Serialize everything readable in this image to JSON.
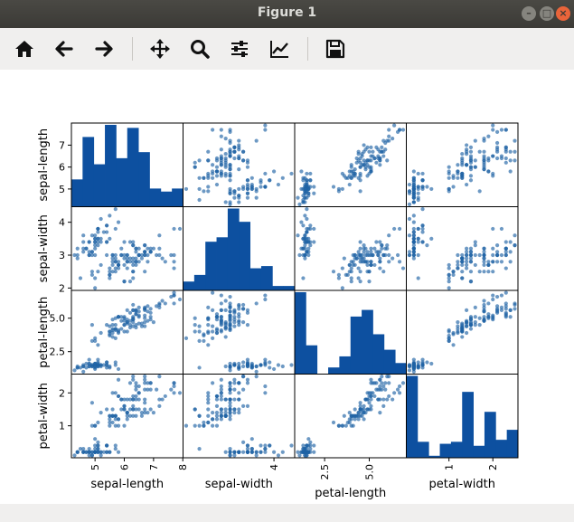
{
  "window": {
    "title": "Figure 1"
  },
  "toolbar": {
    "buttons": [
      {
        "name": "home-button",
        "icon": "home-icon"
      },
      {
        "name": "back-button",
        "icon": "arrow-left-icon"
      },
      {
        "name": "forward-button",
        "icon": "arrow-right-icon"
      },
      {
        "name": "pan-button",
        "icon": "move-icon"
      },
      {
        "name": "zoom-button",
        "icon": "magnifier-icon"
      },
      {
        "name": "configure-subplots-button",
        "icon": "sliders-icon"
      },
      {
        "name": "edit-axes-button",
        "icon": "line-chart-icon"
      },
      {
        "name": "save-button",
        "icon": "floppy-disk-icon"
      }
    ]
  },
  "chart_data": {
    "type": "scatter",
    "variables": [
      "sepal-length",
      "sepal-width",
      "petal-length",
      "petal-width"
    ],
    "ranges": [
      [
        4.3,
        7.9
      ],
      [
        2.0,
        4.4
      ],
      [
        1.0,
        6.9
      ],
      [
        0.1,
        2.5
      ]
    ],
    "y_ticks": [
      [
        5,
        6,
        7
      ],
      [
        2,
        3,
        4
      ],
      [
        2.5,
        5.0
      ],
      [
        1,
        2
      ]
    ],
    "y_tick_labels": [
      [
        "5",
        "6",
        "7"
      ],
      [
        "2",
        "3",
        "4"
      ],
      [
        "2.5",
        "5.0"
      ],
      [
        "1",
        "2"
      ]
    ],
    "x_ticks": [
      [
        5,
        6,
        7,
        8
      ],
      [
        4
      ],
      [
        2.5,
        5.0
      ],
      [
        1,
        2
      ]
    ],
    "x_tick_labels": [
      [
        "5",
        "6",
        "7",
        "8"
      ],
      [
        "4"
      ],
      [
        "2.5",
        "5.0"
      ],
      [
        "1",
        "2"
      ]
    ],
    "hist_counts": [
      [
        9,
        23,
        14,
        27,
        16,
        26,
        18,
        6,
        5,
        6
      ],
      [
        4,
        7,
        22,
        24,
        37,
        31,
        10,
        11,
        2,
        2
      ],
      [
        37,
        13,
        0,
        3,
        8,
        26,
        29,
        18,
        11,
        5
      ],
      [
        41,
        8,
        1,
        7,
        8,
        33,
        6,
        23,
        9,
        14
      ]
    ],
    "points": [
      [
        5.1,
        3.5,
        1.4,
        0.2
      ],
      [
        4.9,
        3.0,
        1.4,
        0.2
      ],
      [
        4.7,
        3.2,
        1.3,
        0.2
      ],
      [
        4.6,
        3.1,
        1.5,
        0.2
      ],
      [
        5.0,
        3.6,
        1.4,
        0.2
      ],
      [
        5.4,
        3.9,
        1.7,
        0.4
      ],
      [
        4.6,
        3.4,
        1.4,
        0.3
      ],
      [
        5.0,
        3.4,
        1.5,
        0.2
      ],
      [
        4.4,
        2.9,
        1.4,
        0.2
      ],
      [
        4.9,
        3.1,
        1.5,
        0.1
      ],
      [
        5.4,
        3.7,
        1.5,
        0.2
      ],
      [
        4.8,
        3.4,
        1.6,
        0.2
      ],
      [
        4.8,
        3.0,
        1.4,
        0.1
      ],
      [
        4.3,
        3.0,
        1.1,
        0.1
      ],
      [
        5.8,
        4.0,
        1.2,
        0.2
      ],
      [
        5.7,
        4.4,
        1.5,
        0.4
      ],
      [
        5.4,
        3.9,
        1.3,
        0.4
      ],
      [
        5.1,
        3.5,
        1.4,
        0.3
      ],
      [
        5.7,
        3.8,
        1.7,
        0.3
      ],
      [
        5.1,
        3.8,
        1.5,
        0.3
      ],
      [
        5.4,
        3.4,
        1.7,
        0.2
      ],
      [
        5.1,
        3.7,
        1.5,
        0.4
      ],
      [
        4.6,
        3.6,
        1.0,
        0.2
      ],
      [
        5.1,
        3.3,
        1.7,
        0.5
      ],
      [
        4.8,
        3.4,
        1.9,
        0.2
      ],
      [
        5.0,
        3.0,
        1.6,
        0.2
      ],
      [
        5.0,
        3.4,
        1.6,
        0.4
      ],
      [
        5.2,
        3.5,
        1.5,
        0.2
      ],
      [
        5.2,
        3.4,
        1.4,
        0.2
      ],
      [
        4.7,
        3.2,
        1.6,
        0.2
      ],
      [
        4.8,
        3.1,
        1.6,
        0.2
      ],
      [
        5.4,
        3.4,
        1.5,
        0.4
      ],
      [
        5.2,
        4.1,
        1.5,
        0.1
      ],
      [
        5.5,
        4.2,
        1.4,
        0.2
      ],
      [
        4.9,
        3.1,
        1.5,
        0.2
      ],
      [
        5.0,
        3.2,
        1.2,
        0.2
      ],
      [
        5.5,
        3.5,
        1.3,
        0.2
      ],
      [
        4.9,
        3.6,
        1.4,
        0.1
      ],
      [
        4.4,
        3.0,
        1.3,
        0.2
      ],
      [
        5.1,
        3.4,
        1.5,
        0.2
      ],
      [
        5.0,
        3.5,
        1.3,
        0.3
      ],
      [
        4.5,
        2.3,
        1.3,
        0.3
      ],
      [
        4.4,
        3.2,
        1.3,
        0.2
      ],
      [
        5.0,
        3.5,
        1.6,
        0.6
      ],
      [
        5.1,
        3.8,
        1.9,
        0.4
      ],
      [
        4.8,
        3.0,
        1.4,
        0.3
      ],
      [
        5.1,
        3.8,
        1.6,
        0.2
      ],
      [
        4.6,
        3.2,
        1.4,
        0.2
      ],
      [
        5.3,
        3.7,
        1.5,
        0.2
      ],
      [
        5.0,
        3.3,
        1.4,
        0.2
      ],
      [
        7.0,
        3.2,
        4.7,
        1.4
      ],
      [
        6.4,
        3.2,
        4.5,
        1.5
      ],
      [
        6.9,
        3.1,
        4.9,
        1.5
      ],
      [
        5.5,
        2.3,
        4.0,
        1.3
      ],
      [
        6.5,
        2.8,
        4.6,
        1.5
      ],
      [
        5.7,
        2.8,
        4.5,
        1.3
      ],
      [
        6.3,
        3.3,
        4.7,
        1.6
      ],
      [
        4.9,
        2.4,
        3.3,
        1.0
      ],
      [
        6.6,
        2.9,
        4.6,
        1.3
      ],
      [
        5.2,
        2.7,
        3.9,
        1.4
      ],
      [
        5.0,
        2.0,
        3.5,
        1.0
      ],
      [
        5.9,
        3.0,
        4.2,
        1.5
      ],
      [
        6.0,
        2.2,
        4.0,
        1.0
      ],
      [
        6.1,
        2.9,
        4.7,
        1.4
      ],
      [
        5.6,
        2.9,
        3.6,
        1.3
      ],
      [
        6.7,
        3.1,
        4.4,
        1.4
      ],
      [
        5.6,
        3.0,
        4.5,
        1.5
      ],
      [
        5.8,
        2.7,
        4.1,
        1.0
      ],
      [
        6.2,
        2.2,
        4.5,
        1.5
      ],
      [
        5.6,
        2.5,
        3.9,
        1.1
      ],
      [
        5.9,
        3.2,
        4.8,
        1.8
      ],
      [
        6.1,
        2.8,
        4.0,
        1.3
      ],
      [
        6.3,
        2.5,
        4.9,
        1.5
      ],
      [
        6.1,
        2.8,
        4.7,
        1.2
      ],
      [
        6.4,
        2.9,
        4.3,
        1.3
      ],
      [
        6.6,
        3.0,
        4.4,
        1.4
      ],
      [
        6.8,
        2.8,
        4.8,
        1.4
      ],
      [
        6.7,
        3.0,
        5.0,
        1.7
      ],
      [
        6.0,
        2.9,
        4.5,
        1.5
      ],
      [
        5.7,
        2.6,
        3.5,
        1.0
      ],
      [
        5.5,
        2.4,
        3.8,
        1.1
      ],
      [
        5.5,
        2.4,
        3.7,
        1.0
      ],
      [
        5.8,
        2.7,
        3.9,
        1.2
      ],
      [
        6.0,
        2.7,
        5.1,
        1.6
      ],
      [
        5.4,
        3.0,
        4.5,
        1.5
      ],
      [
        6.0,
        3.4,
        4.5,
        1.6
      ],
      [
        6.7,
        3.1,
        4.7,
        1.5
      ],
      [
        6.3,
        2.3,
        4.4,
        1.3
      ],
      [
        5.6,
        3.0,
        4.1,
        1.3
      ],
      [
        5.5,
        2.5,
        4.0,
        1.3
      ],
      [
        5.5,
        2.6,
        4.4,
        1.2
      ],
      [
        6.1,
        3.0,
        4.6,
        1.4
      ],
      [
        5.8,
        2.6,
        4.0,
        1.2
      ],
      [
        5.0,
        2.3,
        3.3,
        1.0
      ],
      [
        5.6,
        2.7,
        4.2,
        1.3
      ],
      [
        5.7,
        3.0,
        4.2,
        1.2
      ],
      [
        5.7,
        2.9,
        4.2,
        1.3
      ],
      [
        6.2,
        2.9,
        4.3,
        1.3
      ],
      [
        5.1,
        2.5,
        3.0,
        1.1
      ],
      [
        5.7,
        2.8,
        4.1,
        1.3
      ],
      [
        6.3,
        3.3,
        6.0,
        2.5
      ],
      [
        5.8,
        2.7,
        5.1,
        1.9
      ],
      [
        7.1,
        3.0,
        5.9,
        2.1
      ],
      [
        6.3,
        2.9,
        5.6,
        1.8
      ],
      [
        6.5,
        3.0,
        5.8,
        2.2
      ],
      [
        7.6,
        3.0,
        6.6,
        2.1
      ],
      [
        4.9,
        2.5,
        4.5,
        1.7
      ],
      [
        7.3,
        2.9,
        6.3,
        1.8
      ],
      [
        6.7,
        2.5,
        5.8,
        1.8
      ],
      [
        7.2,
        3.6,
        6.1,
        2.5
      ],
      [
        6.5,
        3.2,
        5.1,
        2.0
      ],
      [
        6.4,
        2.7,
        5.3,
        1.9
      ],
      [
        6.8,
        3.0,
        5.5,
        2.1
      ],
      [
        5.7,
        2.5,
        5.0,
        2.0
      ],
      [
        5.8,
        2.8,
        5.1,
        2.4
      ],
      [
        6.4,
        3.2,
        5.3,
        2.3
      ],
      [
        6.5,
        3.0,
        5.5,
        1.8
      ],
      [
        7.7,
        3.8,
        6.7,
        2.2
      ],
      [
        7.7,
        2.6,
        6.9,
        2.3
      ],
      [
        6.0,
        2.2,
        5.0,
        1.5
      ],
      [
        6.9,
        3.2,
        5.7,
        2.3
      ],
      [
        5.6,
        2.8,
        4.9,
        2.0
      ],
      [
        7.7,
        2.8,
        6.7,
        2.0
      ],
      [
        6.3,
        2.7,
        4.9,
        1.8
      ],
      [
        6.7,
        3.3,
        5.7,
        2.1
      ],
      [
        7.2,
        3.2,
        6.0,
        1.8
      ],
      [
        6.2,
        2.8,
        4.8,
        1.8
      ],
      [
        6.1,
        3.0,
        4.9,
        1.8
      ],
      [
        6.4,
        2.8,
        5.6,
        2.1
      ],
      [
        7.2,
        3.0,
        5.8,
        1.6
      ],
      [
        7.4,
        2.8,
        6.1,
        1.9
      ],
      [
        7.9,
        3.8,
        6.4,
        2.0
      ],
      [
        6.4,
        2.8,
        5.6,
        2.2
      ],
      [
        6.3,
        2.8,
        5.1,
        1.5
      ],
      [
        6.1,
        2.6,
        5.6,
        1.4
      ],
      [
        7.7,
        3.0,
        6.1,
        2.3
      ],
      [
        6.3,
        3.4,
        5.6,
        2.4
      ],
      [
        6.4,
        3.1,
        5.5,
        1.8
      ],
      [
        6.0,
        3.0,
        4.8,
        1.8
      ],
      [
        6.9,
        3.1,
        5.4,
        2.1
      ],
      [
        6.7,
        3.1,
        5.6,
        2.4
      ],
      [
        6.9,
        3.1,
        5.1,
        2.3
      ],
      [
        5.8,
        2.7,
        5.1,
        1.9
      ],
      [
        6.8,
        3.2,
        5.9,
        2.3
      ],
      [
        6.7,
        3.3,
        5.7,
        2.5
      ],
      [
        6.7,
        3.0,
        5.2,
        2.3
      ],
      [
        6.3,
        2.5,
        5.0,
        1.9
      ],
      [
        6.5,
        3.0,
        5.2,
        2.0
      ],
      [
        6.2,
        3.4,
        5.4,
        2.3
      ],
      [
        5.9,
        3.0,
        5.1,
        1.8
      ]
    ],
    "colors": {
      "hist": "#0d50a0",
      "scatter": "#1f62a5"
    },
    "grid": false
  }
}
